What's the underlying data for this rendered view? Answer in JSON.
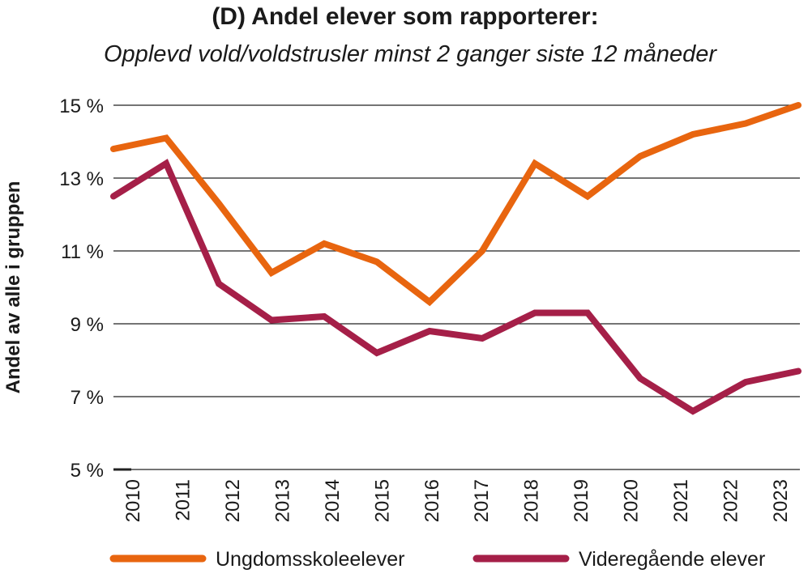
{
  "chart_data": {
    "type": "line",
    "title": "(D) Andel elever som rapporterer:",
    "subtitle": "Opplevd vold/voldstrusler minst 2 ganger siste 12 måneder",
    "xlabel": "",
    "ylabel": "Andel av alle i gruppen",
    "ylim": [
      5,
      15
    ],
    "yticks": [
      5,
      7,
      9,
      11,
      13,
      15
    ],
    "ytick_labels": [
      "5 %",
      "7 %",
      "9 %",
      "11 %",
      "13 %",
      "15 %"
    ],
    "grid": "horizontal",
    "legend_position": "bottom",
    "x": [
      "2010",
      "2011",
      "2012",
      "2013",
      "2014",
      "2015",
      "2016",
      "2017",
      "2018",
      "2019",
      "2020",
      "2021",
      "2022",
      "2023"
    ],
    "x_points": 14,
    "series": [
      {
        "name": "Ungdomsskoleelever",
        "color": "#e8650f",
        "values": [
          13.8,
          14.1,
          12.3,
          10.4,
          11.2,
          10.7,
          9.6,
          11.0,
          13.4,
          12.5,
          13.6,
          14.2,
          14.5,
          15.0
        ]
      },
      {
        "name": "Videregående elever",
        "color": "#a51f48",
        "values": [
          12.5,
          13.4,
          10.1,
          9.1,
          9.2,
          8.2,
          8.8,
          8.6,
          9.3,
          9.3,
          7.5,
          6.6,
          7.4,
          7.7
        ]
      }
    ]
  }
}
